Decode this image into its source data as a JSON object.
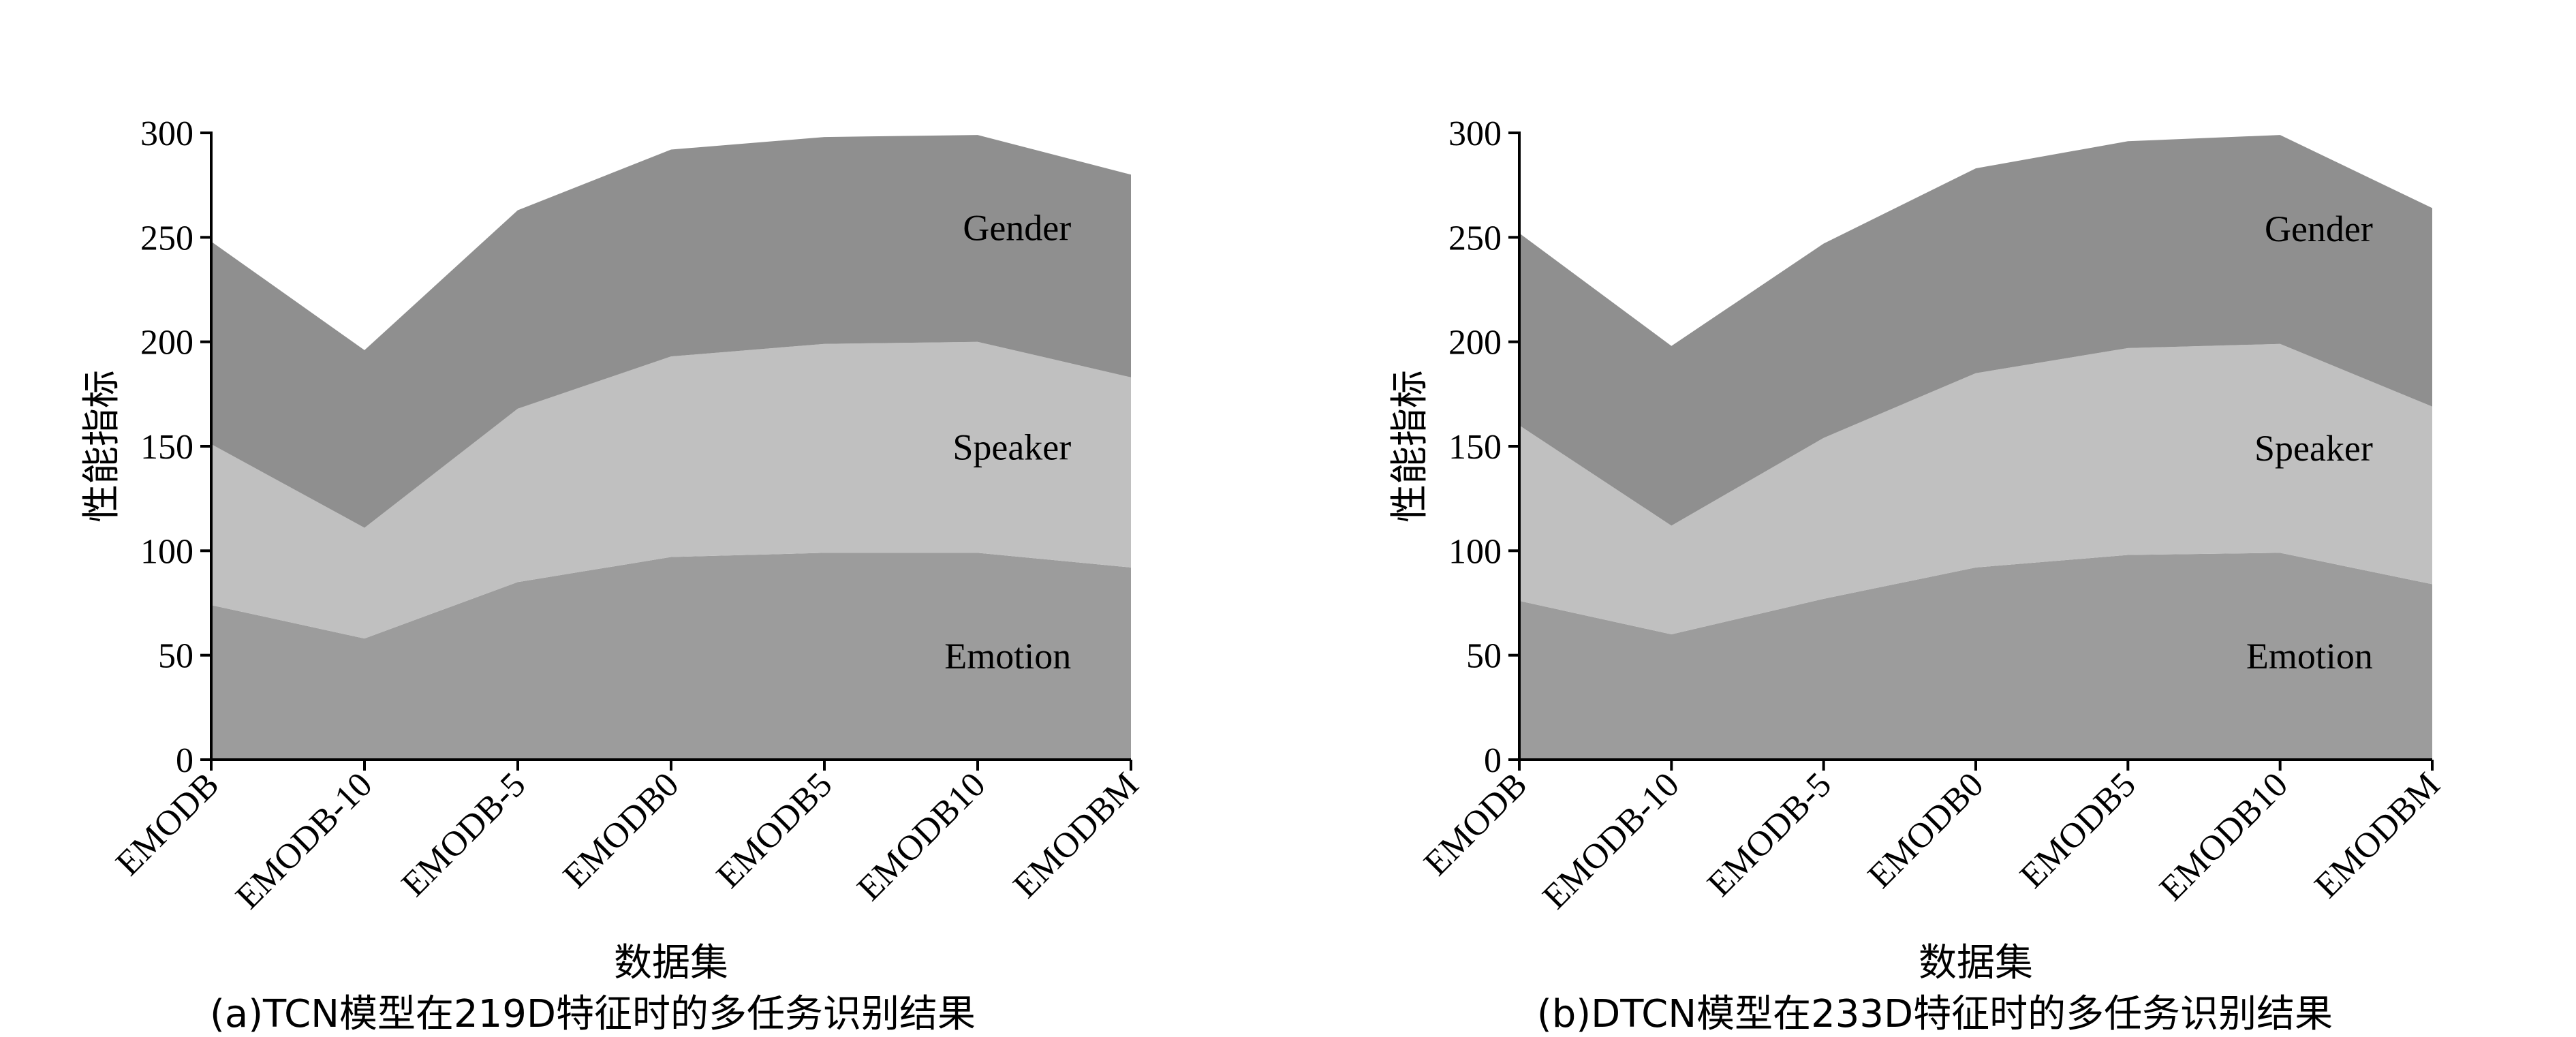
{
  "chart_data": [
    {
      "type": "area",
      "stacked": true,
      "caption": "(a)TCN模型在219D特征时的多任务识别结果",
      "xlabel": "数据集",
      "ylabel": "性能指标",
      "ylim": [
        0,
        300
      ],
      "yticks": [
        "0",
        "50",
        "100",
        "150",
        "200",
        "250",
        "300"
      ],
      "categories": [
        "EMODB",
        "EMODB-10",
        "EMODB-5",
        "EMODB0",
        "EMODB5",
        "EMODB10",
        "EMODBM"
      ],
      "series": [
        {
          "name": "Emotion",
          "values": [
            74,
            58,
            85,
            97,
            99,
            99,
            92
          ],
          "color": "#9c9c9c"
        },
        {
          "name": "Speaker",
          "values": [
            77,
            53,
            83,
            96,
            100,
            101,
            91
          ],
          "color": "#c0c0c0"
        },
        {
          "name": "Gender",
          "values": [
            97,
            85,
            95,
            99,
            99,
            99,
            97
          ],
          "color": "#8f8f8f"
        }
      ],
      "grid": false
    },
    {
      "type": "area",
      "stacked": true,
      "caption": "(b)DTCN模型在233D特征时的多任务识别结果",
      "xlabel": "数据集",
      "ylabel": "性能指标",
      "ylim": [
        0,
        300
      ],
      "yticks": [
        "0",
        "50",
        "100",
        "150",
        "200",
        "250",
        "300"
      ],
      "categories": [
        "EMODB",
        "EMODB-10",
        "EMODB-5",
        "EMODB0",
        "EMODB5",
        "EMODB10",
        "EMODBM"
      ],
      "series": [
        {
          "name": "Emotion",
          "values": [
            76,
            60,
            77,
            92,
            98,
            99,
            84
          ],
          "color": "#9c9c9c"
        },
        {
          "name": "Speaker",
          "values": [
            84,
            52,
            77,
            93,
            99,
            100,
            85
          ],
          "color": "#c0c0c0"
        },
        {
          "name": "Gender",
          "values": [
            92,
            86,
            93,
            98,
            99,
            100,
            95
          ],
          "color": "#8f8f8f"
        }
      ],
      "grid": false
    }
  ]
}
